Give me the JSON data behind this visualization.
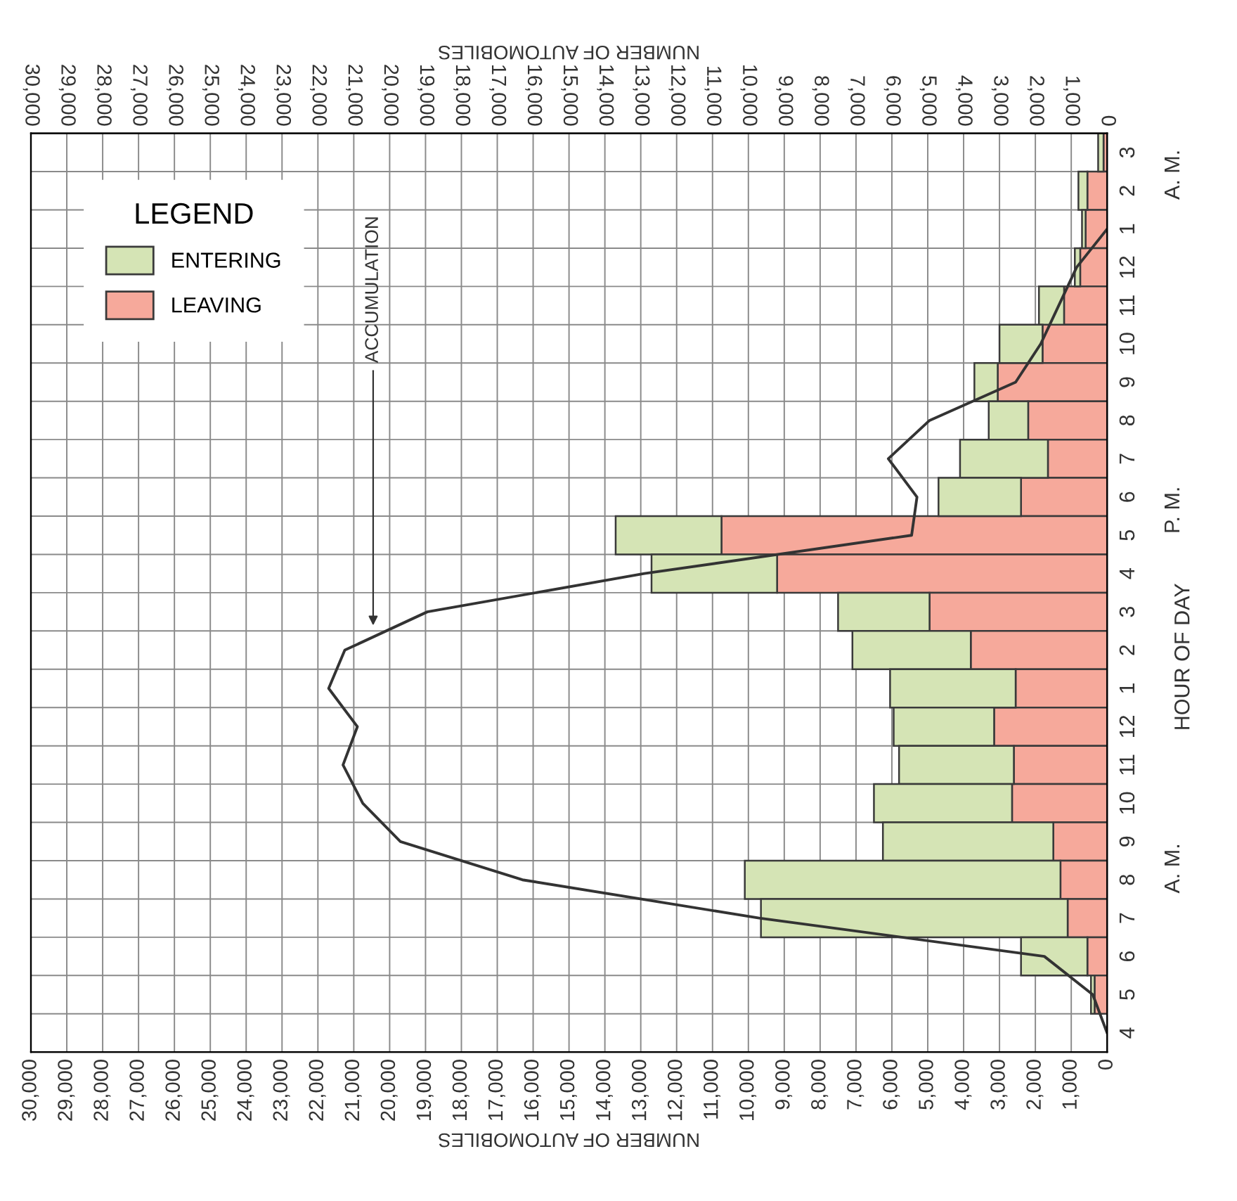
{
  "chart_data": {
    "type": "bar",
    "orientation": "horizontal",
    "xlabel": "NUMBER OF AUTOMOBILES",
    "x2label": "NUMBER OF AUTOMOBILES",
    "ylabel": "HOUR OF DAY",
    "legend_title": "LEGEND",
    "categories": [
      "3",
      "2",
      "1",
      "12",
      "11",
      "10",
      "9",
      "8",
      "7",
      "6",
      "5",
      "4",
      "3",
      "2",
      "1",
      "12",
      "11",
      "10",
      "9",
      "8",
      "7",
      "6",
      "5",
      "4"
    ],
    "series": [
      {
        "name": "LEAVING",
        "color": "#f6a99b",
        "values": [
          100,
          550,
          600,
          750,
          1200,
          1800,
          3050,
          2200,
          1650,
          2400,
          10750,
          9200,
          4950,
          3800,
          2550,
          3150,
          2600,
          2650,
          1500,
          1300,
          1100,
          550,
          350,
          null
        ]
      },
      {
        "name": "ENTERING",
        "color": "#d5e4b5",
        "values": [
          150,
          250,
          100,
          150,
          700,
          1200,
          650,
          1100,
          2450,
          2300,
          2950,
          3500,
          2550,
          3300,
          3500,
          2800,
          3200,
          3850,
          4750,
          8800,
          8550,
          1850,
          100,
          null
        ]
      },
      {
        "type": "line",
        "color": "#333333",
        "values": [
          null,
          null,
          0,
          850,
          1350,
          1850,
          2550,
          4950,
          6100,
          5300,
          5450,
          12900,
          18950,
          21250,
          21700,
          20900,
          21300,
          20750,
          19700,
          16300,
          9700,
          1750,
          400,
          0
        ]
      }
    ],
    "xlim": [
      30000,
      0
    ],
    "x2lim": [
      30000,
      0
    ],
    "xticks": [
      {
        "value": 30000,
        "label": "30,000"
      },
      {
        "value": 29000,
        "label": "29,000"
      },
      {
        "value": 28000,
        "label": "28,000"
      },
      {
        "value": 27000,
        "label": "27,000"
      },
      {
        "value": 26000,
        "label": "26,000"
      },
      {
        "value": 25000,
        "label": "25,000"
      },
      {
        "value": 24000,
        "label": "24,000"
      },
      {
        "value": 23000,
        "label": "23,000"
      },
      {
        "value": 22000,
        "label": "22,000"
      },
      {
        "value": 21000,
        "label": "21,000"
      },
      {
        "value": 20000,
        "label": "20,000"
      },
      {
        "value": 19000,
        "label": "19,000"
      },
      {
        "value": 18000,
        "label": "18,000"
      },
      {
        "value": 17000,
        "label": "17,000"
      },
      {
        "value": 16000,
        "label": "16,000"
      },
      {
        "value": 15000,
        "label": "15,000"
      },
      {
        "value": 14000,
        "label": "14,000"
      },
      {
        "value": 13000,
        "label": "13,000"
      },
      {
        "value": 12000,
        "label": "12,000"
      },
      {
        "value": 11000,
        "label": "11,000"
      },
      {
        "value": 10000,
        "label": "10,000"
      },
      {
        "value": 9000,
        "label": "9,000"
      },
      {
        "value": 8000,
        "label": "8,000"
      },
      {
        "value": 7000,
        "label": "7,000"
      },
      {
        "value": 6000,
        "label": "6,000"
      },
      {
        "value": 5000,
        "label": "5,000"
      },
      {
        "value": 4000,
        "label": "4,000"
      },
      {
        "value": 3000,
        "label": "3,000"
      },
      {
        "value": 2000,
        "label": "2,000"
      },
      {
        "value": 1000,
        "label": "1,000"
      },
      0
    ],
    "x2ticks": [
      {
        "value": 30000,
        "label": "30,000"
      },
      {
        "value": 29000,
        "label": "29,000"
      },
      {
        "value": 28000,
        "label": "28,000"
      },
      {
        "value": 27000,
        "label": "27,000"
      },
      {
        "value": 26000,
        "label": "26,000"
      },
      {
        "value": 25000,
        "label": "25,000"
      },
      {
        "value": 24000,
        "label": "24,000"
      },
      {
        "value": 23000,
        "label": "23,000"
      },
      {
        "value": 22000,
        "label": "22,000"
      },
      {
        "value": 21000,
        "label": "21,000"
      },
      {
        "value": 20000,
        "label": "20,000"
      },
      {
        "value": 19000,
        "label": "19,000"
      },
      {
        "value": 18000,
        "label": "18,000"
      },
      {
        "value": 17000,
        "label": "17,000"
      },
      {
        "value": 16000,
        "label": "16,000"
      },
      {
        "value": 15000,
        "label": "15,000"
      },
      {
        "value": 14000,
        "label": "14,000"
      },
      {
        "value": 13000,
        "label": "13,000"
      },
      {
        "value": 12000,
        "label": "12,000"
      },
      {
        "value": 11000,
        "label": "11,000"
      },
      {
        "value": 10000,
        "label": "10,000"
      },
      {
        "value": 9000,
        "label": "9,000"
      },
      {
        "value": 8000,
        "label": "8,000"
      },
      {
        "value": 7000,
        "label": "7,000"
      },
      {
        "value": 6000,
        "label": "6,000"
      },
      {
        "value": 5000,
        "label": "5,000"
      },
      {
        "value": 4000,
        "label": "4,000"
      },
      {
        "value": 3000,
        "label": "3,000"
      },
      {
        "value": 2000,
        "label": "2,000"
      },
      {
        "value": 1000,
        "label": "1,000"
      },
      0
    ],
    "annotations": [
      "A. M.",
      "P. M.",
      "A. M.",
      "ACCUMULATION"
    ],
    "stacked": true,
    "grid": true,
    "legend": "top left"
  }
}
